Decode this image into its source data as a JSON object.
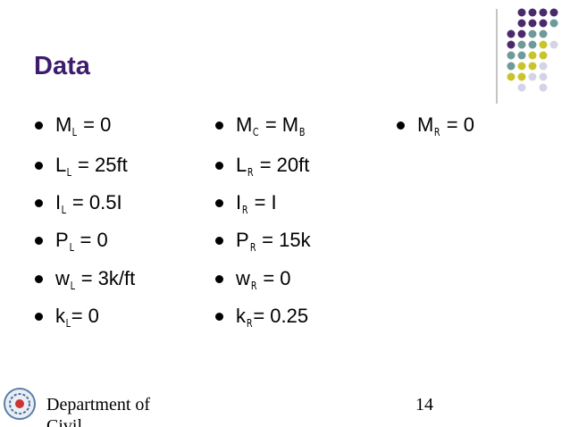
{
  "title": "Data",
  "columns": [
    [
      [
        "M",
        "L",
        " = 0"
      ],
      [
        "L",
        "L",
        " = 25ft"
      ],
      [
        "I",
        "L",
        " = 0.5I"
      ],
      [
        "P",
        "L",
        " = 0"
      ],
      [
        "w",
        "L",
        " = 3k/ft"
      ],
      [
        "k",
        "L",
        "= 0"
      ]
    ],
    [
      [
        "M",
        "C",
        " = M",
        "B"
      ],
      [
        "L",
        "R",
        " = 20ft"
      ],
      [
        "I",
        "R",
        " = I"
      ],
      [
        "P",
        "R",
        " = 15k"
      ],
      [
        "w",
        "R",
        " = 0"
      ],
      [
        "k",
        "R",
        "= 0.25"
      ]
    ],
    [
      [
        "M",
        "R",
        " = 0"
      ]
    ]
  ],
  "footer": {
    "department": "Department of",
    "department_line2": "Civil",
    "page": "14"
  }
}
